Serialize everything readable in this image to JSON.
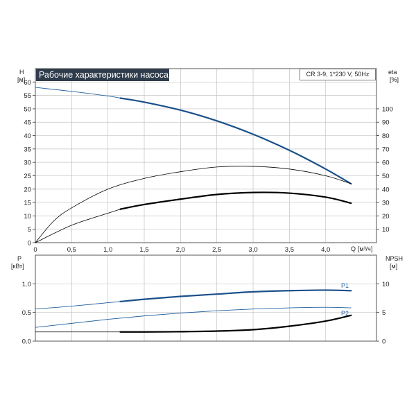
{
  "chart_data": [
    {
      "type": "line",
      "title": "Рабочие характеристики насоса",
      "subtitle": "CR 3-9, 1*230 V, 50Hz",
      "ylabel": "H",
      "yunit": "[м]",
      "y2label": "eta",
      "y2unit": "[%]",
      "xlabel": "Q",
      "xunit": "[м³/ч]",
      "xlim": [
        0,
        4.7
      ],
      "ylim": [
        0,
        65
      ],
      "y2lim": [
        0,
        130
      ],
      "xticks": [
        "0",
        "0,5",
        "1,0",
        "1,5",
        "2,0",
        "2,5",
        "3,0",
        "3,5",
        "4,0"
      ],
      "yticks": [
        "0",
        "5",
        "10",
        "15",
        "20",
        "25",
        "30",
        "35",
        "40",
        "45",
        "50",
        "55",
        "60"
      ],
      "y2ticks": [
        "10",
        "20",
        "30",
        "40",
        "50",
        "60",
        "70",
        "80",
        "90",
        "100"
      ],
      "grid": true,
      "series": [
        {
          "axis": "y",
          "x": [
            0,
            0.5,
            1.0,
            1.17
          ],
          "y": [
            58,
            56.5,
            54.8,
            54
          ],
          "color": "#1f5f9e",
          "width": 0.9
        },
        {
          "axis": "y",
          "x": [
            1.17,
            1.5,
            2.0,
            2.5,
            3.0,
            3.5,
            4.0,
            4.35
          ],
          "y": [
            54,
            52.5,
            49.5,
            45.5,
            40.5,
            34.5,
            27.5,
            22
          ],
          "color": "#1a4f8a",
          "width": 2.2
        },
        {
          "axis": "y2",
          "x": [
            0,
            0.25,
            0.5,
            1.0,
            1.5,
            2.0,
            2.5,
            3.0,
            3.5,
            4.0,
            4.35
          ],
          "y": [
            0,
            16,
            26,
            40,
            48,
            53,
            56.5,
            57,
            55,
            50,
            44
          ],
          "color": "#000000",
          "width": 0.8
        },
        {
          "axis": "y2",
          "x": [
            0,
            0.5,
            1.0,
            1.17
          ],
          "y": [
            0,
            13,
            22,
            25
          ],
          "color": "#000000",
          "width": 0.8
        },
        {
          "axis": "y2",
          "x": [
            1.17,
            1.5,
            2.0,
            2.5,
            3.0,
            3.5,
            4.0,
            4.35
          ],
          "y": [
            25,
            28.5,
            32.5,
            36,
            37.5,
            37,
            34,
            29.5
          ],
          "color": "#000000",
          "width": 2.2
        }
      ]
    },
    {
      "type": "line",
      "ylabel": "P",
      "yunit": "[кВт]",
      "y2label": "NPSH",
      "y2unit": "[м]",
      "xlim": [
        0,
        4.7
      ],
      "ylim": [
        0,
        1.5
      ],
      "y2lim": [
        0,
        15
      ],
      "yticks": [
        "0.0",
        "0.5",
        "1.0"
      ],
      "y2ticks": [
        "0",
        "5",
        "10"
      ],
      "grid": true,
      "series": [
        {
          "name": "P1",
          "axis": "y",
          "x": [
            0,
            0.5,
            1.0,
            1.17
          ],
          "y": [
            0.56,
            0.61,
            0.67,
            0.69
          ],
          "color": "#1f5f9e",
          "width": 0.9
        },
        {
          "axis": "y",
          "x": [
            1.17,
            1.5,
            2.0,
            2.5,
            3.0,
            3.5,
            4.0,
            4.35
          ],
          "y": [
            0.69,
            0.73,
            0.78,
            0.82,
            0.86,
            0.88,
            0.89,
            0.88
          ],
          "color": "#1a4f8a",
          "width": 2.2
        },
        {
          "name": "P2",
          "axis": "y",
          "x": [
            0,
            0.5,
            1.0,
            1.5,
            2.0,
            2.5,
            3.0,
            3.5,
            4.0,
            4.35
          ],
          "y": [
            0.24,
            0.31,
            0.38,
            0.44,
            0.49,
            0.53,
            0.56,
            0.58,
            0.59,
            0.58
          ],
          "color": "#1f5f9e",
          "width": 0.9
        },
        {
          "axis": "y2",
          "x": [
            0,
            1.17
          ],
          "y": [
            1.6,
            1.6
          ],
          "color": "#000000",
          "width": 0.8
        },
        {
          "axis": "y2",
          "x": [
            1.17,
            1.5,
            2.0,
            2.5,
            3.0,
            3.5,
            4.0,
            4.35
          ],
          "y": [
            1.6,
            1.6,
            1.65,
            1.75,
            2.0,
            2.6,
            3.5,
            4.5
          ],
          "color": "#000000",
          "width": 2.2
        }
      ]
    }
  ]
}
